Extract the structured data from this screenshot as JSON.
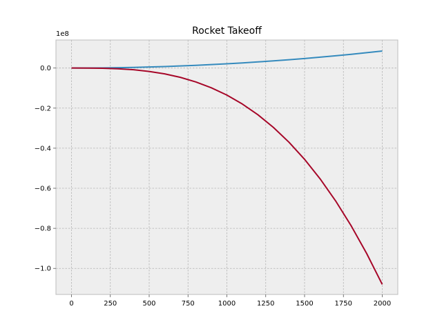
{
  "chart_data": {
    "type": "line",
    "title": "Rocket Takeoff",
    "xlabel": "",
    "ylabel": "",
    "y_offset_label": "1e8",
    "xlim": [
      -100,
      2100
    ],
    "ylim": [
      -1.13,
      0.14
    ],
    "xticks": [
      0,
      250,
      500,
      750,
      1000,
      1250,
      1500,
      1750,
      2000
    ],
    "xtick_labels": [
      "0",
      "250",
      "500",
      "750",
      "1000",
      "1250",
      "1500",
      "1750",
      "2000"
    ],
    "yticks": [
      0.0,
      -0.2,
      -0.4,
      -0.6,
      -0.8,
      -1.0
    ],
    "ytick_labels": [
      "0.0",
      "−0.2",
      "−0.4",
      "−0.6",
      "−0.8",
      "−1.0"
    ],
    "grid": true,
    "background_color": "#EEEEEE",
    "grid_color": "#B2B2B2",
    "spine_color": "#BCBCBC",
    "series": [
      {
        "color": "#348ABD",
        "x": [
          0,
          100,
          200,
          300,
          400,
          500,
          600,
          700,
          800,
          900,
          1000,
          1100,
          1200,
          1300,
          1400,
          1500,
          1600,
          1700,
          1800,
          1900,
          2000
        ],
        "y": [
          0.0,
          0.0002,
          0.0008,
          0.0019,
          0.0034,
          0.0053,
          0.0076,
          0.0104,
          0.0136,
          0.0172,
          0.0212,
          0.0257,
          0.0306,
          0.0359,
          0.0416,
          0.0477,
          0.0543,
          0.0613,
          0.0687,
          0.0766,
          0.0848
        ]
      },
      {
        "color": "#A60628",
        "x": [
          0,
          100,
          200,
          300,
          400,
          500,
          600,
          700,
          800,
          900,
          1000,
          1100,
          1200,
          1300,
          1400,
          1500,
          1600,
          1700,
          1800,
          1900,
          2000
        ],
        "y": [
          0.0,
          -0.0001,
          -0.0011,
          -0.0037,
          -0.0086,
          -0.0169,
          -0.0292,
          -0.0463,
          -0.0692,
          -0.0985,
          -0.135,
          -0.1797,
          -0.2333,
          -0.2966,
          -0.3704,
          -0.4556,
          -0.553,
          -0.6633,
          -0.7874,
          -0.9261,
          -1.08
        ]
      }
    ]
  }
}
